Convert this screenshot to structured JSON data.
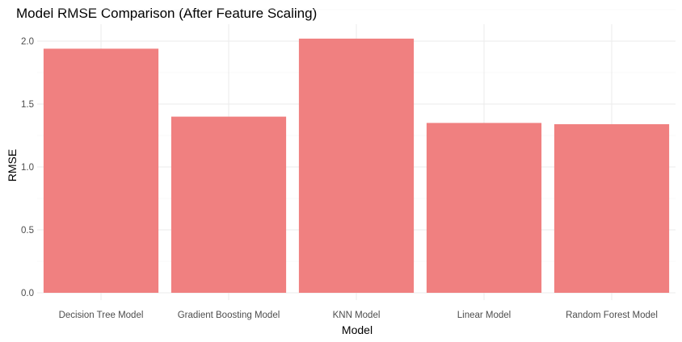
{
  "chart_data": {
    "type": "bar",
    "title": "Model RMSE Comparison (After Feature Scaling)",
    "xlabel": "Model",
    "ylabel": "RMSE",
    "categories": [
      "Decision Tree Model",
      "Gradient Boosting Model",
      "KNN Model",
      "Linear Model",
      "Random Forest Model"
    ],
    "values": [
      1.94,
      1.4,
      2.02,
      1.35,
      1.34
    ],
    "ylim": [
      0,
      2.0
    ],
    "yticks": [
      "0.0",
      "0.5",
      "1.0",
      "1.5",
      "2.0"
    ],
    "grid": true,
    "legend": "none",
    "bar_color": "#F08080"
  }
}
